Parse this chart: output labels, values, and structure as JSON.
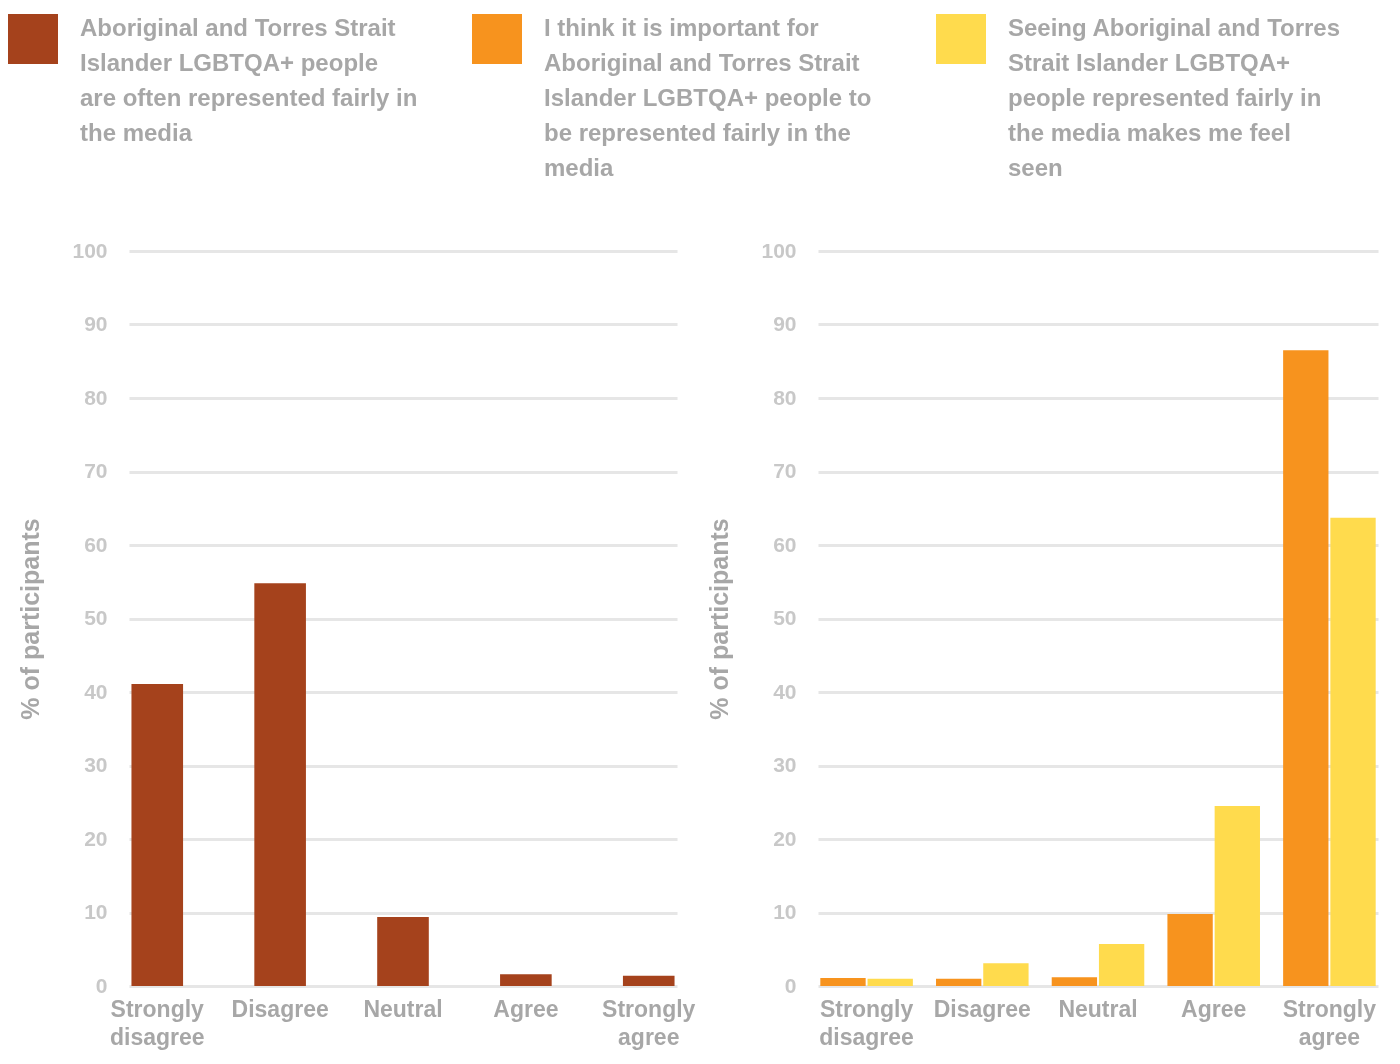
{
  "chart_data": [
    {
      "type": "bar",
      "ylabel": "% of participants",
      "categories": [
        "Strongly disagree",
        "Disagree",
        "Neutral",
        "Agree",
        "Strongly agree"
      ],
      "ylim": [
        0,
        100
      ],
      "yticks": [
        0,
        10,
        20,
        30,
        40,
        50,
        60,
        70,
        80,
        90,
        100
      ],
      "grid": "y",
      "legend": "top",
      "series": [
        {
          "name": "Aboriginal and Torres Strait Islander LGBTQA+ people are often represented fairly in the media",
          "color": "#a5421c",
          "values": [
            41.1,
            54.8,
            9.4,
            1.6,
            1.4
          ]
        }
      ]
    },
    {
      "type": "bar",
      "ylabel": "% of participants",
      "categories": [
        "Strongly disagree",
        "Disagree",
        "Neutral",
        "Agree",
        "Strongly agree"
      ],
      "ylim": [
        0,
        100
      ],
      "yticks": [
        0,
        10,
        20,
        30,
        40,
        50,
        60,
        70,
        80,
        90,
        100
      ],
      "grid": "y",
      "legend": "top",
      "series": [
        {
          "name": "I think it is important for Aboriginal and Torres Strait Islander LGBTQA+ people to be represented fairly in the media",
          "color": "#f7931e",
          "values": [
            1.1,
            1.0,
            1.2,
            9.8,
            86.5
          ]
        },
        {
          "name": "Seeing Aboriginal and Torres Strait Islander LGBTQA+ people represented fairly in the media makes me feel seen",
          "color": "#ffdb4d",
          "values": [
            1.0,
            3.1,
            5.7,
            24.5,
            63.7
          ]
        }
      ]
    }
  ]
}
